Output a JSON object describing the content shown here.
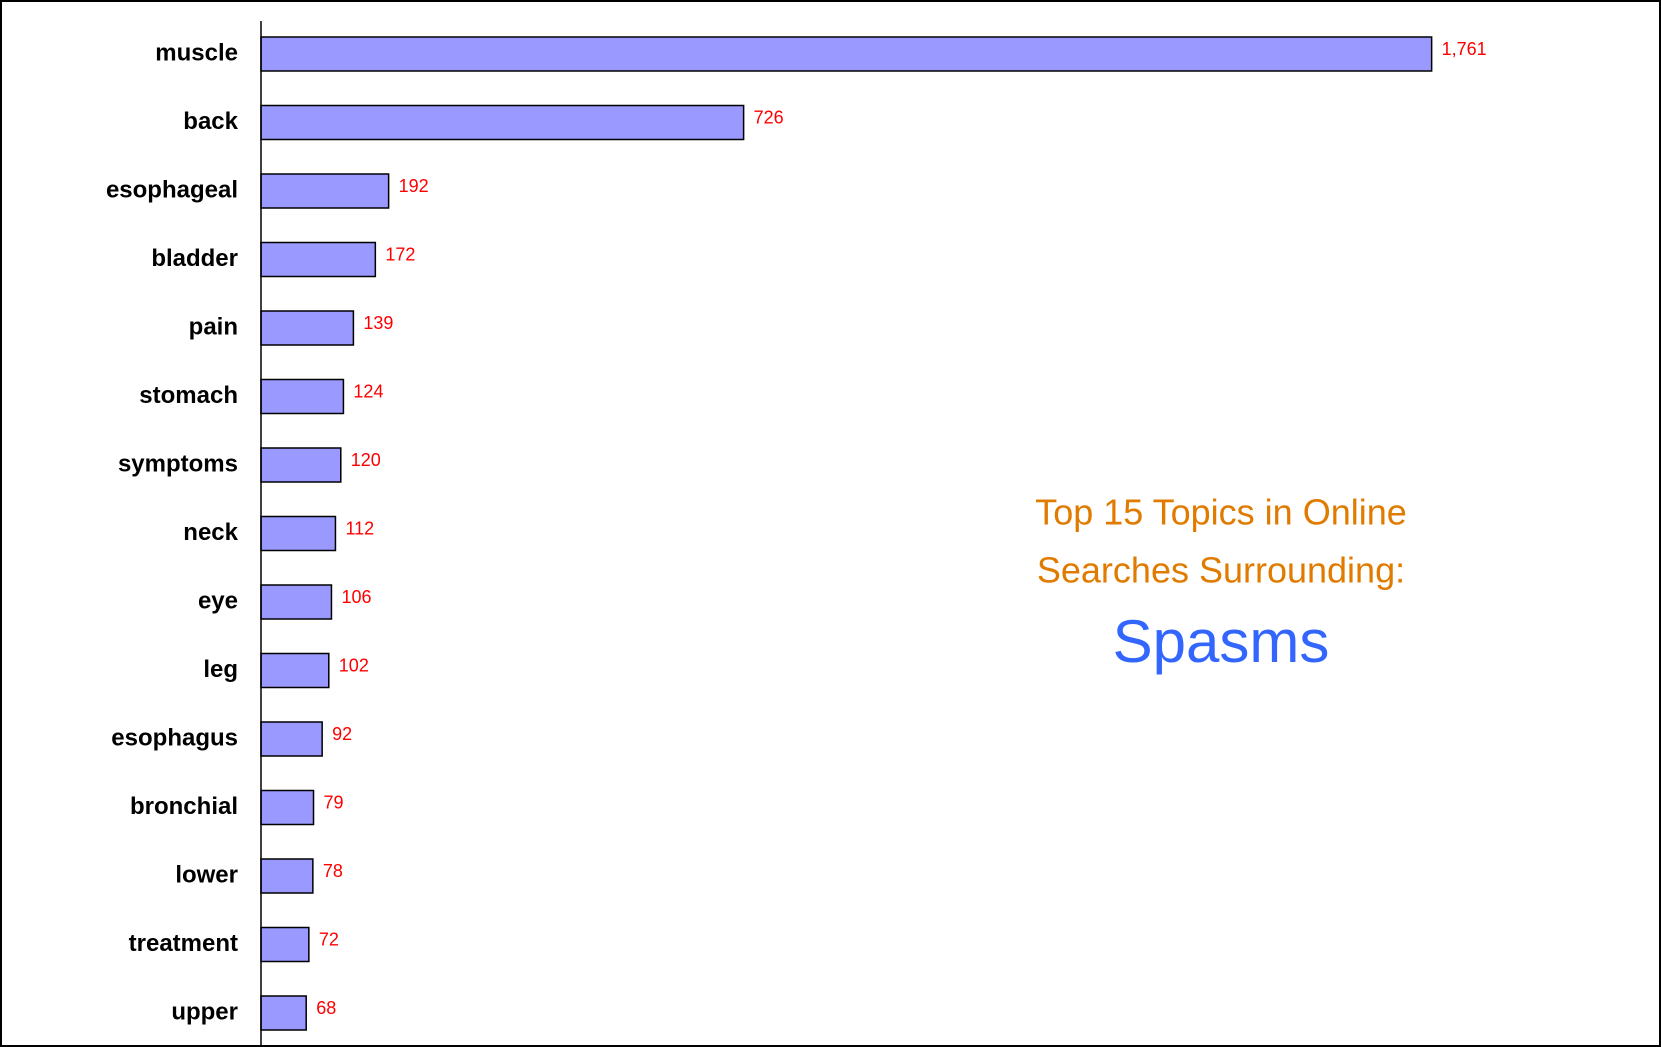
{
  "chart_data": {
    "type": "bar",
    "orientation": "horizontal",
    "title": [
      "Top 15 Topics in Online",
      "Searches Surrounding:"
    ],
    "subtitle": "Spasms",
    "categories": [
      "muscle",
      "back",
      "esophageal",
      "bladder",
      "pain",
      "stomach",
      "symptoms",
      "neck",
      "eye",
      "leg",
      "esophagus",
      "bronchial",
      "lower",
      "treatment",
      "upper"
    ],
    "values": [
      1761,
      726,
      192,
      172,
      139,
      124,
      120,
      112,
      106,
      102,
      92,
      79,
      78,
      72,
      68
    ],
    "value_labels": [
      "1,761",
      "726",
      "192",
      "172",
      "139",
      "124",
      "120",
      "112",
      "106",
      "102",
      "92",
      "79",
      "78",
      "72",
      "68"
    ],
    "color": "#9999ff",
    "label_color": "#ff0000",
    "title_color": "#e07b00",
    "subtitle_color": "#3366ff",
    "xlim": [
      0,
      2100
    ]
  }
}
